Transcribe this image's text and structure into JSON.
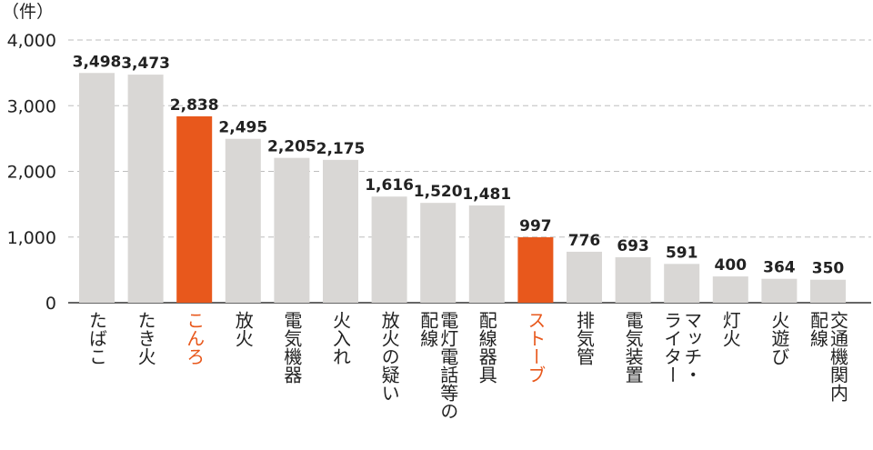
{
  "chart_data": {
    "type": "bar",
    "unit": "（件）",
    "ylim": [
      0,
      4000
    ],
    "yticks": [
      0,
      1000,
      2000,
      3000,
      4000
    ],
    "ytick_labels": [
      "0",
      "1,000",
      "2,000",
      "3,000",
      "4,000"
    ],
    "grid": true,
    "colors": {
      "default": "#d9d7d5",
      "highlight": "#e8581c",
      "text": "#222222",
      "grid": "#bdbdbd"
    },
    "categories": [
      {
        "lines": [
          "たばこ"
        ],
        "value": 3498,
        "label": "3,498",
        "highlight": false
      },
      {
        "lines": [
          "たき火"
        ],
        "value": 3473,
        "label": "3,473",
        "highlight": false
      },
      {
        "lines": [
          "こんろ"
        ],
        "value": 2838,
        "label": "2,838",
        "highlight": true
      },
      {
        "lines": [
          "放火"
        ],
        "value": 2495,
        "label": "2,495",
        "highlight": false
      },
      {
        "lines": [
          "電気機器"
        ],
        "value": 2205,
        "label": "2,205",
        "highlight": false
      },
      {
        "lines": [
          "火入れ"
        ],
        "value": 2175,
        "label": "2,175",
        "highlight": false
      },
      {
        "lines": [
          "放火の疑い"
        ],
        "value": 1616,
        "label": "1,616",
        "highlight": false
      },
      {
        "lines": [
          "電灯電話等の",
          "配線"
        ],
        "value": 1520,
        "label": "1,520",
        "highlight": false
      },
      {
        "lines": [
          "配線器具"
        ],
        "value": 1481,
        "label": "1,481",
        "highlight": false
      },
      {
        "lines": [
          "ストーブ"
        ],
        "value": 997,
        "label": "997",
        "highlight": true
      },
      {
        "lines": [
          "排気管"
        ],
        "value": 776,
        "label": "776",
        "highlight": false
      },
      {
        "lines": [
          "電気装置"
        ],
        "value": 693,
        "label": "693",
        "highlight": false
      },
      {
        "lines": [
          "マッチ・",
          "ライター"
        ],
        "value": 591,
        "label": "591",
        "highlight": false
      },
      {
        "lines": [
          "灯火"
        ],
        "value": 400,
        "label": "400",
        "highlight": false
      },
      {
        "lines": [
          "火遊び"
        ],
        "value": 364,
        "label": "364",
        "highlight": false
      },
      {
        "lines": [
          "交通機関内",
          "配線"
        ],
        "value": 350,
        "label": "350",
        "highlight": false
      }
    ]
  }
}
